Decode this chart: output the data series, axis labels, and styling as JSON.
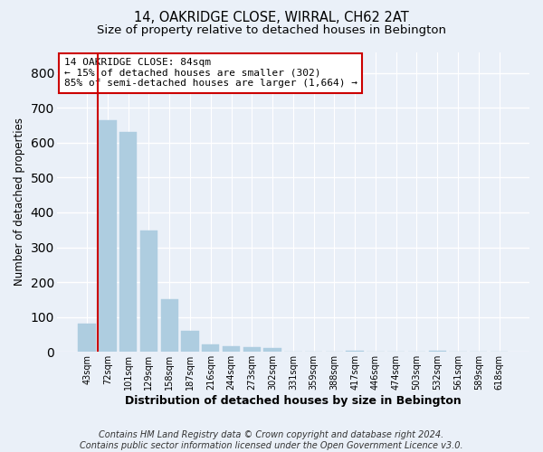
{
  "title_line1": "14, OAKRIDGE CLOSE, WIRRAL, CH62 2AT",
  "title_line2": "Size of property relative to detached houses in Bebington",
  "xlabel": "Distribution of detached houses by size in Bebington",
  "ylabel": "Number of detached properties",
  "categories": [
    "43sqm",
    "72sqm",
    "101sqm",
    "129sqm",
    "158sqm",
    "187sqm",
    "216sqm",
    "244sqm",
    "273sqm",
    "302sqm",
    "331sqm",
    "359sqm",
    "388sqm",
    "417sqm",
    "446sqm",
    "474sqm",
    "503sqm",
    "532sqm",
    "561sqm",
    "589sqm",
    "618sqm"
  ],
  "values": [
    82,
    665,
    630,
    348,
    150,
    60,
    22,
    17,
    15,
    10,
    0,
    0,
    0,
    4,
    0,
    0,
    0,
    4,
    0,
    0,
    0
  ],
  "bar_color": "#aecde0",
  "bar_edge_color": "#aecde0",
  "bg_color": "#eaf0f8",
  "grid_color": "#ffffff",
  "annotation_text": "14 OAKRIDGE CLOSE: 84sqm\n← 15% of detached houses are smaller (302)\n85% of semi-detached houses are larger (1,664) →",
  "annotation_box_color": "#ffffff",
  "annotation_box_edge_color": "#cc0000",
  "vline_color": "#cc0000",
  "vline_x_index": 1,
  "ylim": [
    0,
    860
  ],
  "yticks": [
    0,
    100,
    200,
    300,
    400,
    500,
    600,
    700,
    800
  ],
  "footnote": "Contains HM Land Registry data © Crown copyright and database right 2024.\nContains public sector information licensed under the Open Government Licence v3.0.",
  "title_fontsize": 10.5,
  "subtitle_fontsize": 9.5,
  "ylabel_fontsize": 8.5,
  "xlabel_fontsize": 9,
  "tick_fontsize": 7,
  "annotation_fontsize": 8,
  "footnote_fontsize": 7
}
